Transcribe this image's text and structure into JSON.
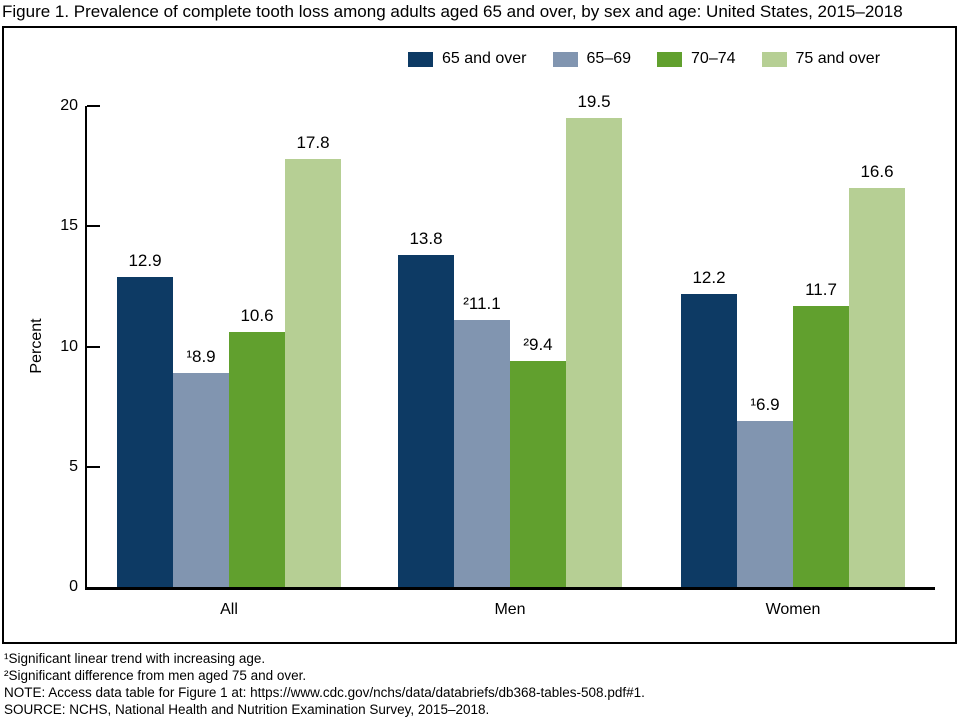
{
  "chart_data": {
    "type": "bar",
    "title": "Figure 1. Prevalence of complete tooth loss among adults aged 65 and over, by sex and age: United States, 2015–2018",
    "categories": [
      "All",
      "Men",
      "Women"
    ],
    "series": [
      {
        "name": "65 and over",
        "color": "#0d3a64",
        "values": [
          12.9,
          13.8,
          12.2
        ],
        "labels": [
          "12.9",
          "13.8",
          "12.2"
        ]
      },
      {
        "name": "65–69",
        "color": "#8195b0",
        "values": [
          8.9,
          11.1,
          6.9
        ],
        "labels": [
          "¹8.9",
          "²11.1",
          "¹6.9"
        ]
      },
      {
        "name": "70–74",
        "color": "#61a02e",
        "values": [
          10.6,
          9.4,
          11.7
        ],
        "labels": [
          "10.6",
          "²9.4",
          "11.7"
        ]
      },
      {
        "name": "75 and over",
        "color": "#b6cf94",
        "values": [
          17.8,
          19.5,
          16.6
        ],
        "labels": [
          "17.8",
          "19.5",
          "16.6"
        ]
      }
    ],
    "xlabel": "",
    "ylabel": "Percent",
    "yticks": [
      0,
      5,
      10,
      15,
      20
    ],
    "ylim": [
      0,
      20
    ],
    "grid": false,
    "legend_position": "top"
  },
  "footnotes": [
    "¹Significant linear trend with increasing age.",
    "²Significant difference from men aged 75 and over.",
    "NOTE: Access data table for Figure 1 at: https://www.cdc.gov/nchs/data/databriefs/db368-tables-508.pdf#1.",
    "SOURCE: NCHS, National Health and Nutrition Examination Survey, 2015–2018."
  ],
  "colors": {
    "axis": "#000000",
    "border": "#000000",
    "background": "#ffffff"
  }
}
